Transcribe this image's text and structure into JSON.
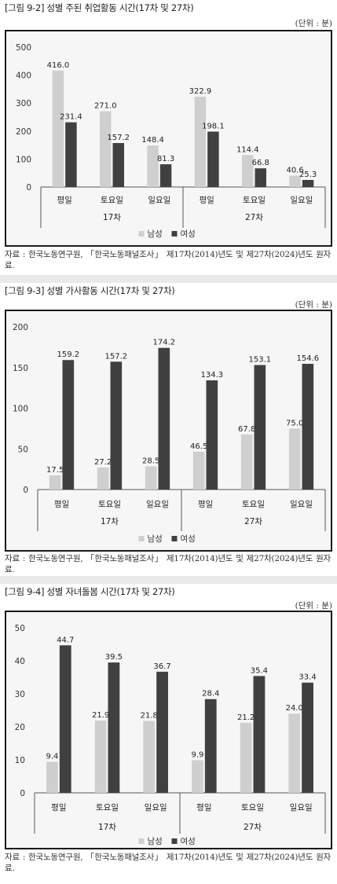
{
  "figures": [
    {
      "title": "[그림 9-2] 성별 주된 취업활동 시간(17차 및 27차)",
      "unit": "(단위 : 분)",
      "source": "자료 : 한국노동연구원, 「한국노동패널조사」 제17차(2014)년도 및 제27차(2024)년도 원자료.",
      "chart_data": {
        "type": "bar",
        "categories": [
          "평일",
          "토요일",
          "일요일",
          "평일",
          "토요일",
          "일요일"
        ],
        "groups": [
          {
            "label": "17차",
            "categories": [
              0,
              1,
              2
            ]
          },
          {
            "label": "27차",
            "categories": [
              3,
              4,
              5
            ]
          }
        ],
        "series": [
          {
            "name": "남성",
            "color": "#cfcfcf",
            "values": [
              416.0,
              271.0,
              148.4,
              322.9,
              114.4,
              40.6
            ]
          },
          {
            "name": "여성",
            "color": "#404040",
            "values": [
              231.4,
              157.2,
              81.3,
              198.1,
              66.8,
              25.3
            ]
          }
        ],
        "value_labels": [
          [
            "416.0",
            "271.0",
            "148.4",
            "322.9",
            "114.4",
            "40.6"
          ],
          [
            "231.4",
            "157.2",
            "81.3",
            "198.1",
            "66.8",
            "25.3"
          ]
        ],
        "ylim": [
          0,
          500
        ],
        "yticks": [
          "0",
          "100",
          "200",
          "300",
          "400",
          "500"
        ],
        "legend_position": "bottom"
      }
    },
    {
      "title": "[그림 9-3] 성별 가사활동 시간(17차 및 27차)",
      "unit": "(단위 : 분)",
      "source": "자료 : 한국노동연구원, 「한국노동패널조사」 제17차(2014)년도 및 제27차(2024)년도 원자료.",
      "chart_data": {
        "type": "bar",
        "categories": [
          "평일",
          "토요일",
          "일요일",
          "평일",
          "토요일",
          "일요일"
        ],
        "groups": [
          {
            "label": "17차",
            "categories": [
              0,
              1,
              2
            ]
          },
          {
            "label": "27차",
            "categories": [
              3,
              4,
              5
            ]
          }
        ],
        "series": [
          {
            "name": "남성",
            "color": "#cfcfcf",
            "values": [
              17.5,
              27.2,
              28.5,
              46.5,
              67.8,
              75.0
            ]
          },
          {
            "name": "여성",
            "color": "#404040",
            "values": [
              159.2,
              157.2,
              174.2,
              134.3,
              153.1,
              154.6
            ]
          }
        ],
        "value_labels": [
          [
            "17.5",
            "27.2",
            "28.5",
            "46.5",
            "67.8",
            "75.0"
          ],
          [
            "159.2",
            "157.2",
            "174.2",
            "134.3",
            "153.1",
            "154.6"
          ]
        ],
        "ylim": [
          0,
          200
        ],
        "yticks": [
          "0",
          "50",
          "100",
          "150",
          "200"
        ],
        "legend_position": "bottom"
      }
    },
    {
      "title": "[그림 9-4] 성별 자녀돌봄 시간(17차 및 27차)",
      "unit": "(단위 : 분)",
      "source": "자료 : 한국노동연구원, 「한국노동패널조사」 제17차(2014)년도 및 제27차(2024)년도 원자료.",
      "chart_data": {
        "type": "bar",
        "categories": [
          "평일",
          "토요일",
          "일요일",
          "평일",
          "토요일",
          "일요일"
        ],
        "groups": [
          {
            "label": "17차",
            "categories": [
              0,
              1,
              2
            ]
          },
          {
            "label": "27차",
            "categories": [
              3,
              4,
              5
            ]
          }
        ],
        "series": [
          {
            "name": "남성",
            "color": "#cfcfcf",
            "values": [
              9.4,
              21.9,
              21.8,
              9.9,
              21.2,
              24.0
            ]
          },
          {
            "name": "여성",
            "color": "#404040",
            "values": [
              44.7,
              39.5,
              36.7,
              28.4,
              35.4,
              33.4
            ]
          }
        ],
        "value_labels": [
          [
            "9.4",
            "21.9",
            "21.8",
            "9.9",
            "21.2",
            "24.0"
          ],
          [
            "44.7",
            "39.5",
            "36.7",
            "28.4",
            "35.4",
            "33.4"
          ]
        ],
        "ylim": [
          0,
          50
        ],
        "yticks": [
          "0",
          "10",
          "20",
          "30",
          "40",
          "50"
        ],
        "legend_position": "bottom"
      }
    }
  ]
}
